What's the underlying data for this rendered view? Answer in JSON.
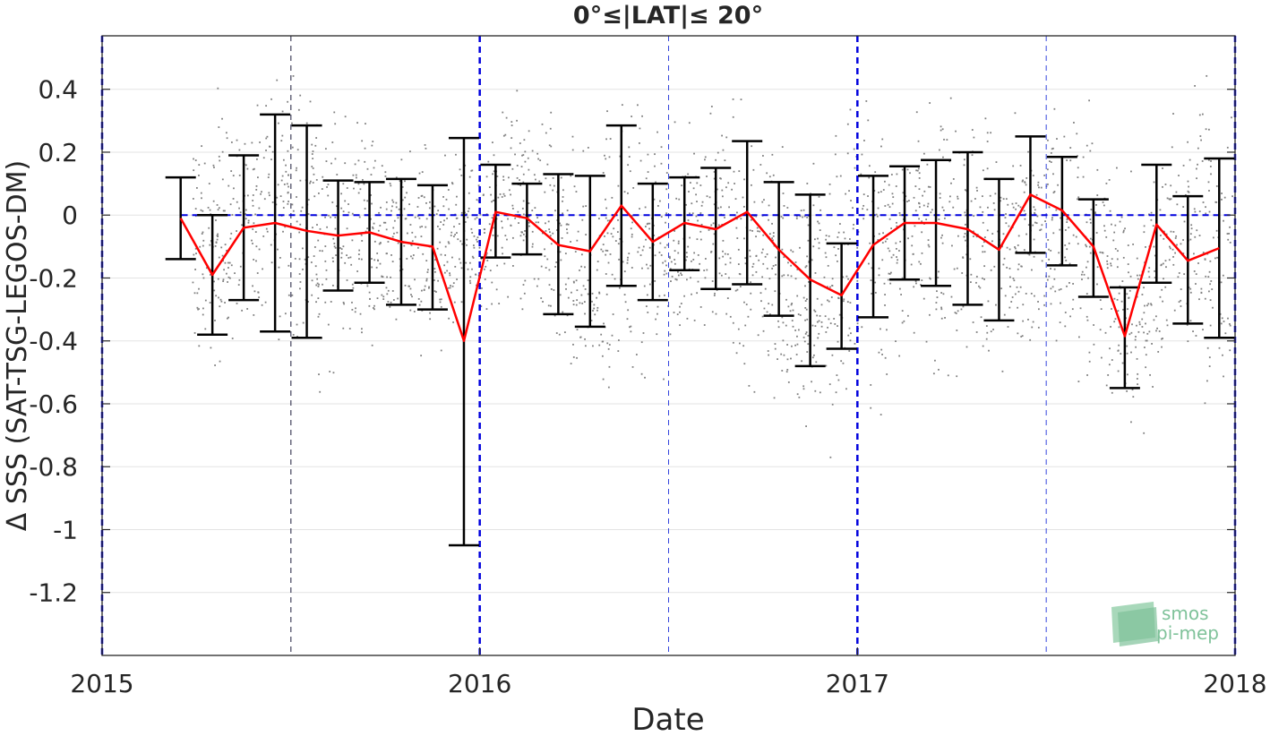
{
  "chart_data": {
    "type": "scatter",
    "title": "0°≤|LAT|≤ 20°",
    "xlabel": "Date",
    "ylabel": "Δ SSS (SAT-TSG-LEGOS-DM)",
    "xlim": [
      2015.0,
      2018.0
    ],
    "ylim": [
      -1.4,
      0.57
    ],
    "xticks": [
      {
        "value": 2015,
        "label": "2015"
      },
      {
        "value": 2016,
        "label": "2016"
      },
      {
        "value": 2017,
        "label": "2017"
      },
      {
        "value": 2018,
        "label": "2018"
      }
    ],
    "yticks": [
      {
        "value": 0.4,
        "label": "0.4"
      },
      {
        "value": 0.2,
        "label": "0.2"
      },
      {
        "value": 0,
        "label": "0"
      },
      {
        "value": -0.2,
        "label": "-0.2"
      },
      {
        "value": -0.4,
        "label": "-0.4"
      },
      {
        "value": -0.6,
        "label": "-0.6"
      },
      {
        "value": -0.8,
        "label": "-0.8"
      },
      {
        "value": -1.0,
        "label": "-1"
      },
      {
        "value": -1.2,
        "label": "-1.2"
      }
    ],
    "grid": true,
    "reference_line": {
      "y": 0,
      "color": "#0000dd",
      "style": "dashed"
    },
    "year_boundaries": [
      2015.0,
      2016.0,
      2017.0,
      2018.0
    ],
    "half_year_lines": [
      2015.5,
      2016.5,
      2017.5
    ],
    "monthly_statistics": {
      "x": [
        2015.208,
        2015.292,
        2015.375,
        2015.458,
        2015.542,
        2015.625,
        2015.708,
        2015.792,
        2015.875,
        2015.958,
        2016.042,
        2016.125,
        2016.208,
        2016.292,
        2016.375,
        2016.458,
        2016.542,
        2016.625,
        2016.708,
        2016.792,
        2016.875,
        2016.958,
        2017.042,
        2017.125,
        2017.208,
        2017.292,
        2017.375,
        2017.458,
        2017.542,
        2017.625,
        2017.708,
        2017.792,
        2017.875,
        2017.958
      ],
      "mean": [
        -0.01,
        -0.19,
        -0.04,
        -0.025,
        -0.05,
        -0.065,
        -0.055,
        -0.085,
        -0.1,
        -0.4,
        0.01,
        -0.01,
        -0.095,
        -0.115,
        0.03,
        -0.085,
        -0.025,
        -0.045,
        0.01,
        -0.11,
        -0.205,
        -0.255,
        -0.095,
        -0.025,
        -0.025,
        -0.045,
        -0.11,
        0.065,
        0.015,
        -0.1,
        -0.385,
        -0.03,
        -0.145,
        -0.105
      ],
      "upper": [
        0.12,
        0.0,
        0.19,
        0.32,
        0.285,
        0.11,
        0.105,
        0.115,
        0.095,
        0.245,
        0.16,
        0.1,
        0.13,
        0.125,
        0.285,
        0.1,
        0.12,
        0.15,
        0.235,
        0.105,
        0.065,
        -0.09,
        0.125,
        0.155,
        0.175,
        0.2,
        0.115,
        0.25,
        0.185,
        0.05,
        -0.23,
        0.16,
        0.06,
        0.18
      ],
      "lower": [
        -0.14,
        -0.38,
        -0.27,
        -0.37,
        -0.39,
        -0.24,
        -0.215,
        -0.285,
        -0.3,
        -1.05,
        -0.135,
        -0.125,
        -0.315,
        -0.355,
        -0.225,
        -0.27,
        -0.175,
        -0.235,
        -0.22,
        -0.32,
        -0.48,
        -0.425,
        -0.325,
        -0.205,
        -0.225,
        -0.285,
        -0.335,
        -0.12,
        -0.16,
        -0.26,
        -0.55,
        -0.215,
        -0.345,
        -0.39
      ],
      "mean_color": "#ff0000",
      "errorbar_color": "#000000"
    },
    "scatter_envelope": {
      "x": [
        2015.25,
        2015.33,
        2015.42,
        2015.5,
        2015.58,
        2015.67,
        2015.75,
        2015.83,
        2015.92,
        2016.0,
        2016.08,
        2016.17,
        2016.25,
        2016.33,
        2016.42,
        2016.5,
        2016.58,
        2016.67,
        2016.75,
        2016.83,
        2016.92,
        2017.0,
        2017.08,
        2017.17,
        2017.25,
        2017.33,
        2017.42,
        2017.5,
        2017.58,
        2017.67,
        2017.75,
        2017.83,
        2017.92,
        2018.0
      ],
      "upper": [
        0.45,
        0.55,
        0.57,
        0.57,
        0.57,
        0.45,
        0.35,
        0.35,
        0.3,
        0.2,
        0.57,
        0.4,
        0.35,
        0.5,
        0.57,
        0.35,
        0.4,
        0.45,
        0.4,
        0.3,
        0.3,
        0.57,
        0.5,
        0.5,
        0.5,
        0.5,
        0.45,
        0.4,
        0.57,
        0.3,
        0.2,
        0.5,
        0.57,
        0.57
      ],
      "lower": [
        -0.6,
        -0.7,
        -0.6,
        -0.5,
        -0.7,
        -0.6,
        -0.5,
        -0.55,
        -0.5,
        -0.4,
        -0.4,
        -0.5,
        -0.7,
        -0.8,
        -0.7,
        -0.6,
        -0.5,
        -0.6,
        -0.65,
        -0.8,
        -0.85,
        -0.8,
        -0.7,
        -0.6,
        -0.7,
        -0.6,
        -0.6,
        -0.5,
        -0.6,
        -0.7,
        -0.85,
        -0.6,
        -0.8,
        -0.8
      ],
      "color": "#808080"
    },
    "watermark": {
      "line1": "smos",
      "line2": "pi-mep"
    }
  }
}
